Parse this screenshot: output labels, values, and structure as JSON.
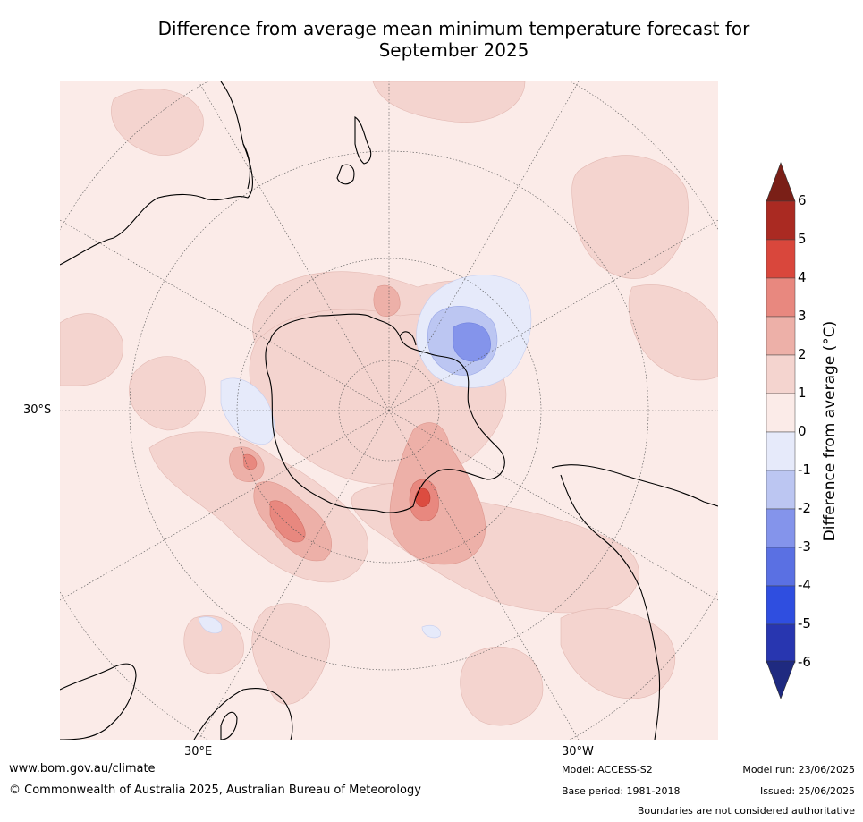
{
  "title": {
    "line1": "Difference from average mean minimum temperature forecast for",
    "line2": "September 2025"
  },
  "map": {
    "projection": "south-polar-stereographic",
    "lat_label": "30°S",
    "lon_labels": {
      "east": "30°E",
      "west": "30°W"
    },
    "colors": {
      "neg6": "#283593",
      "neg5": "#2c4ae0",
      "neg4": "#4d63e0",
      "neg3": "#8494eb",
      "neg2": "#bcc6f2",
      "neg1": "#e6eafa",
      "pos0": "#fbebe8",
      "pos1": "#f4d4cf",
      "pos2": "#edb0a8",
      "pos3": "#e8887f",
      "pos4": "#dc4c40",
      "pos5": "#aa2a22",
      "pos6": "#7a1f17"
    }
  },
  "colorbar": {
    "label": "Difference from average (°C)",
    "ticks": [
      "6",
      "5",
      "4",
      "3",
      "2",
      "1",
      "0",
      "-1",
      "-2",
      "-3",
      "-4",
      "-5",
      "-6"
    ],
    "bins": [
      "#aa2a22",
      "#d9473c",
      "#e8887f",
      "#edb0a8",
      "#f4d4cf",
      "#fbebe8",
      "#e6eafa",
      "#bcc6f2",
      "#8494eb",
      "#5a70e3",
      "#2f4ee0",
      "#2836b0"
    ],
    "over_color": "#7a1f17",
    "under_color": "#1f2a80"
  },
  "footer": {
    "website": "www.bom.gov.au/climate",
    "copyright": "© Commonwealth of Australia 2025, Australian Bureau of Meteorology",
    "model": "Model: ACCESS-S2",
    "base_period": "Base period: 1981-2018",
    "model_run": "Model run: 23/06/2025",
    "issued": "Issued: 25/06/2025",
    "disclaimer": "Boundaries are not considered authoritative"
  }
}
